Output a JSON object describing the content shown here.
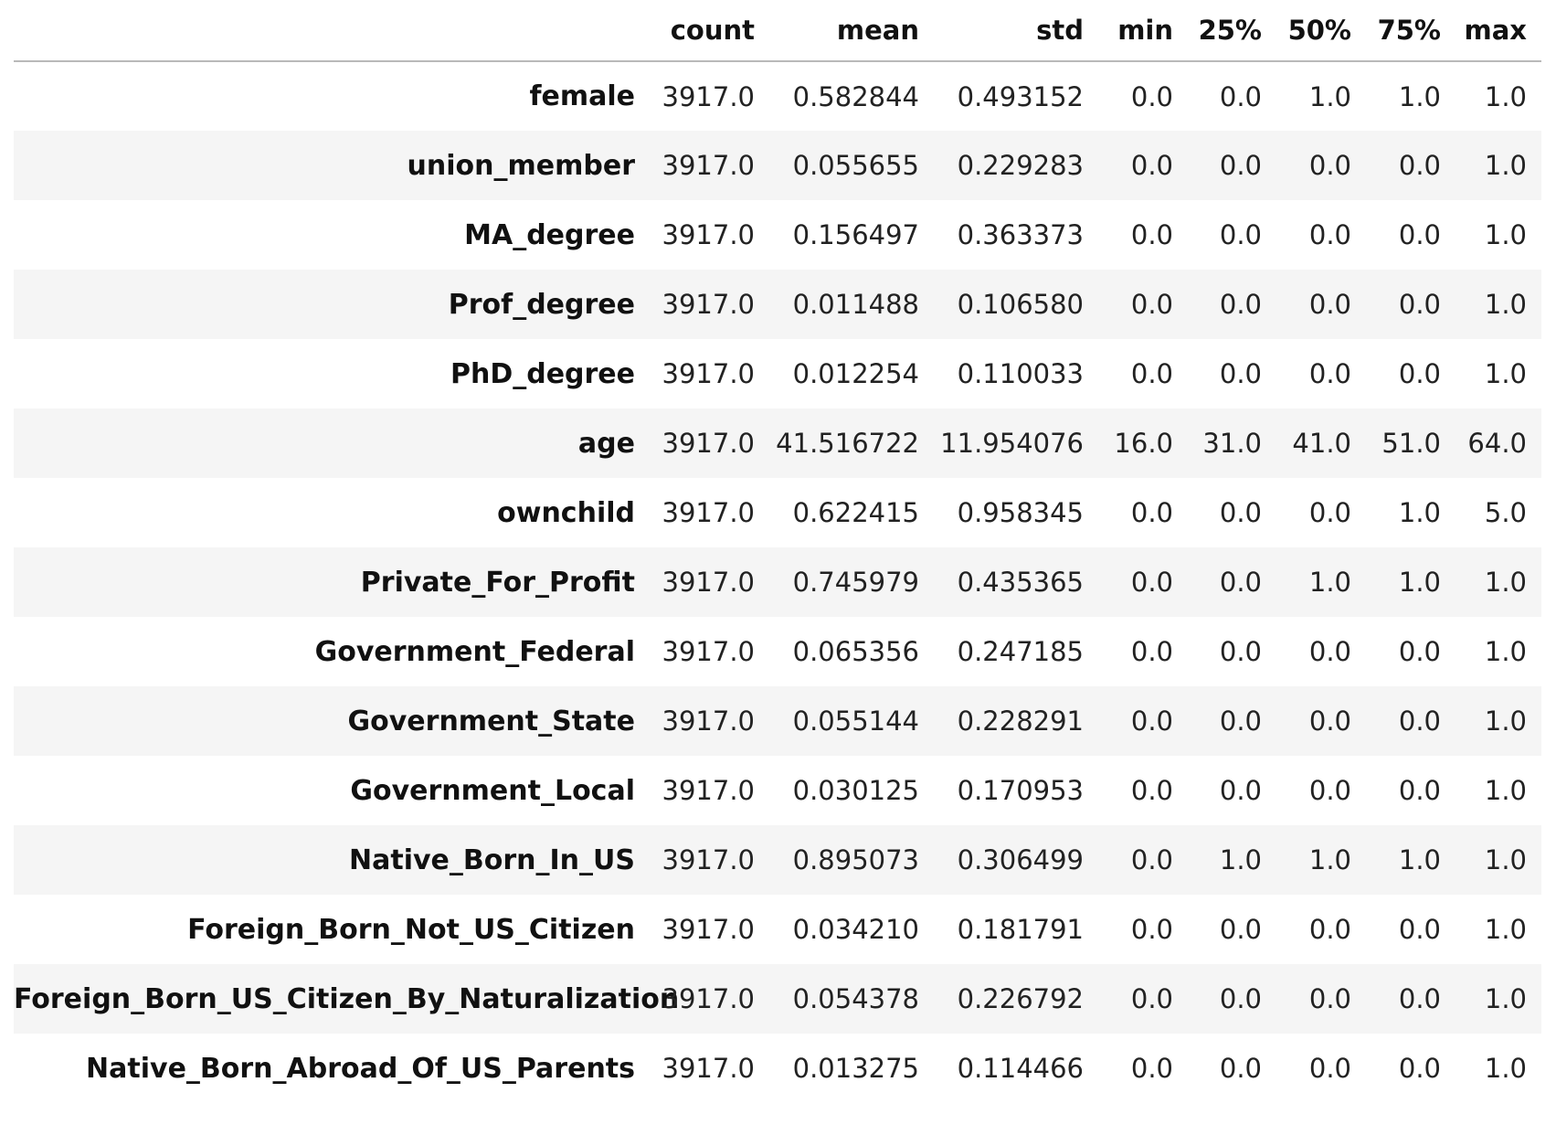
{
  "table": {
    "columns": [
      "",
      "count",
      "mean",
      "std",
      "min",
      "25%",
      "50%",
      "75%",
      "max"
    ],
    "rows": [
      {
        "index": "female",
        "values": [
          "3917.0",
          "0.582844",
          "0.493152",
          "0.0",
          "0.0",
          "1.0",
          "1.0",
          "1.0"
        ]
      },
      {
        "index": "union_member",
        "values": [
          "3917.0",
          "0.055655",
          "0.229283",
          "0.0",
          "0.0",
          "0.0",
          "0.0",
          "1.0"
        ]
      },
      {
        "index": "MA_degree",
        "values": [
          "3917.0",
          "0.156497",
          "0.363373",
          "0.0",
          "0.0",
          "0.0",
          "0.0",
          "1.0"
        ]
      },
      {
        "index": "Prof_degree",
        "values": [
          "3917.0",
          "0.011488",
          "0.106580",
          "0.0",
          "0.0",
          "0.0",
          "0.0",
          "1.0"
        ]
      },
      {
        "index": "PhD_degree",
        "values": [
          "3917.0",
          "0.012254",
          "0.110033",
          "0.0",
          "0.0",
          "0.0",
          "0.0",
          "1.0"
        ]
      },
      {
        "index": "age",
        "values": [
          "3917.0",
          "41.516722",
          "11.954076",
          "16.0",
          "31.0",
          "41.0",
          "51.0",
          "64.0"
        ]
      },
      {
        "index": "ownchild",
        "values": [
          "3917.0",
          "0.622415",
          "0.958345",
          "0.0",
          "0.0",
          "0.0",
          "1.0",
          "5.0"
        ]
      },
      {
        "index": "Private_For_Profit",
        "values": [
          "3917.0",
          "0.745979",
          "0.435365",
          "0.0",
          "0.0",
          "1.0",
          "1.0",
          "1.0"
        ]
      },
      {
        "index": "Government_Federal",
        "values": [
          "3917.0",
          "0.065356",
          "0.247185",
          "0.0",
          "0.0",
          "0.0",
          "0.0",
          "1.0"
        ]
      },
      {
        "index": "Government_State",
        "values": [
          "3917.0",
          "0.055144",
          "0.228291",
          "0.0",
          "0.0",
          "0.0",
          "0.0",
          "1.0"
        ]
      },
      {
        "index": "Government_Local",
        "values": [
          "3917.0",
          "0.030125",
          "0.170953",
          "0.0",
          "0.0",
          "0.0",
          "0.0",
          "1.0"
        ]
      },
      {
        "index": "Native_Born_In_US",
        "values": [
          "3917.0",
          "0.895073",
          "0.306499",
          "0.0",
          "1.0",
          "1.0",
          "1.0",
          "1.0"
        ]
      },
      {
        "index": "Foreign_Born_Not_US_Citizen",
        "values": [
          "3917.0",
          "0.034210",
          "0.181791",
          "0.0",
          "0.0",
          "0.0",
          "0.0",
          "1.0"
        ]
      },
      {
        "index": "Foreign_Born_US_Citizen_By_Naturalization",
        "values": [
          "3917.0",
          "0.054378",
          "0.226792",
          "0.0",
          "0.0",
          "0.0",
          "0.0",
          "1.0"
        ]
      },
      {
        "index": "Native_Born_Abroad_Of_US_Parents",
        "values": [
          "3917.0",
          "0.013275",
          "0.114466",
          "0.0",
          "0.0",
          "0.0",
          "0.0",
          "1.0"
        ]
      }
    ]
  }
}
